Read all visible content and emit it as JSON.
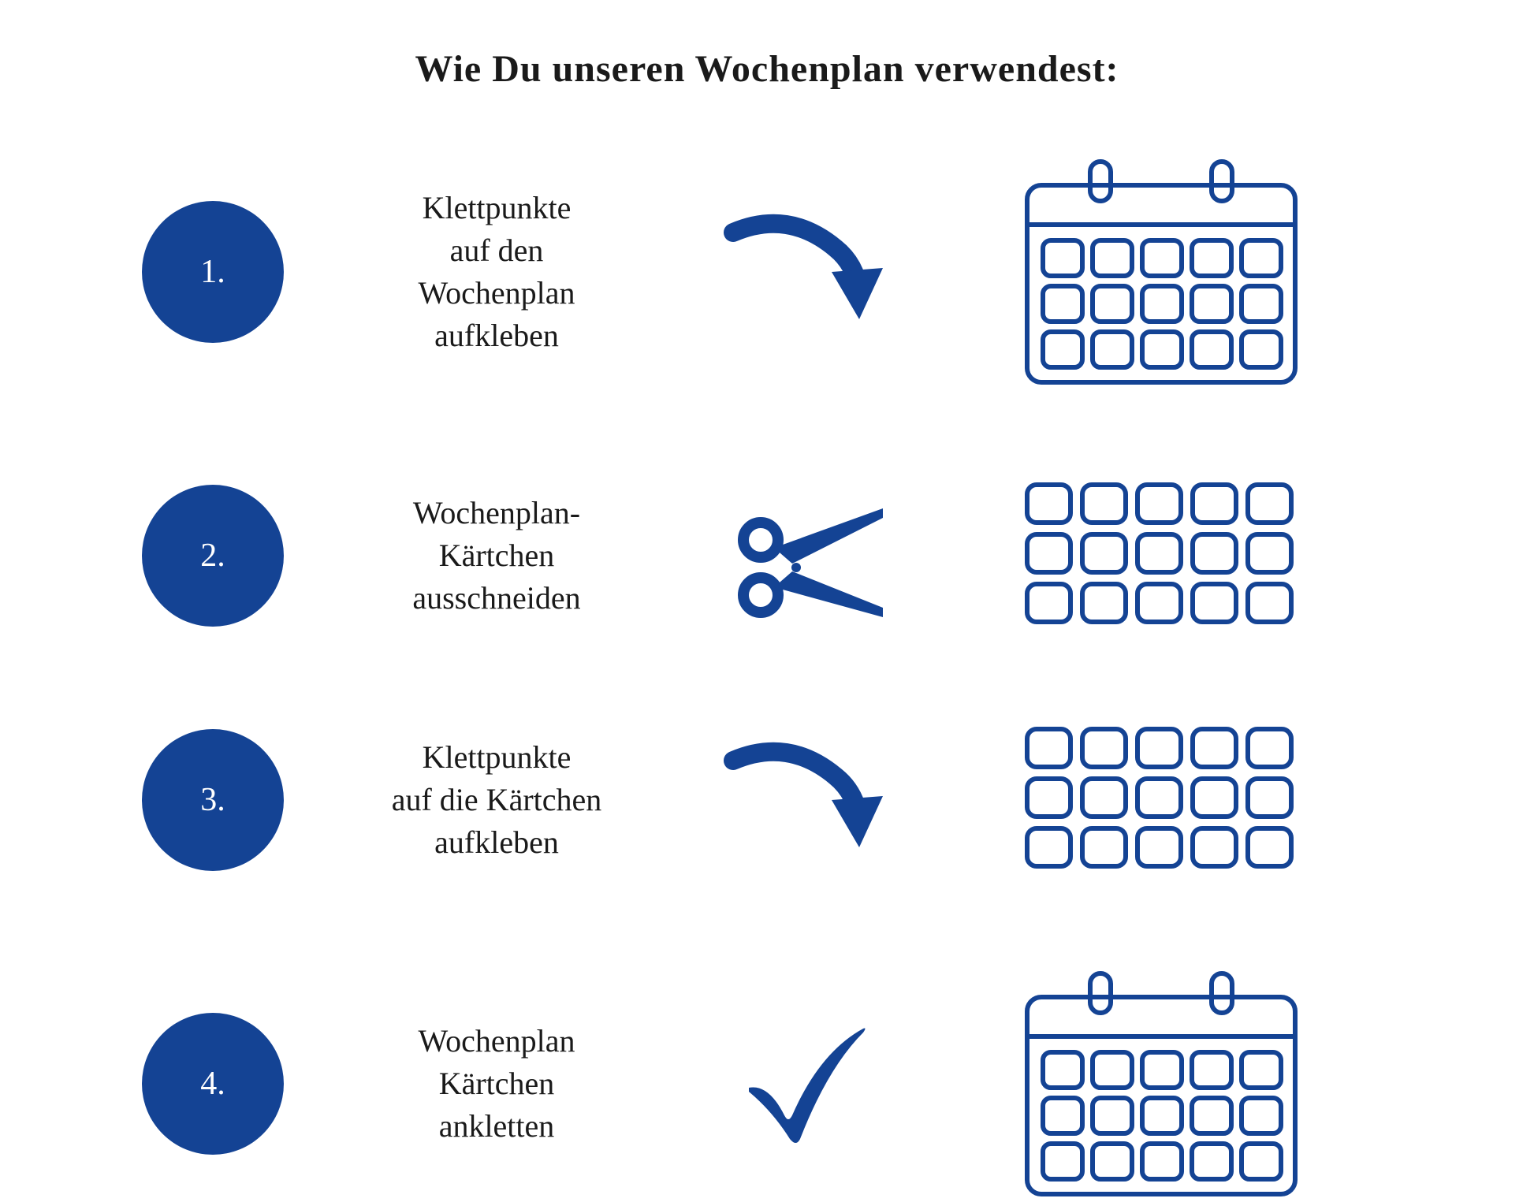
{
  "title": "Wie Du unseren Wochenplan verwendest:",
  "colors": {
    "brand": "#144394",
    "text": "#1a1a1a",
    "background": "#ffffff",
    "circle_text": "#ffffff"
  },
  "typography": {
    "title_font_size": 48,
    "step_font_size": 40,
    "circle_font_size": 42
  },
  "steps": [
    {
      "number": "1.",
      "text": "Klettpunkte\nauf den\nWochenplan\naufkleben",
      "icon": "arrow-down-curve",
      "graphic": "calendar"
    },
    {
      "number": "2.",
      "text": "Wochenplan-\nKärtchen\nausschneiden",
      "icon": "scissors",
      "graphic": "cards-grid"
    },
    {
      "number": "3.",
      "text": "Klettpunkte\nauf die Kärtchen\naufkleben",
      "icon": "arrow-down-curve",
      "graphic": "cards-grid"
    },
    {
      "number": "4.",
      "text": "Wochenplan\nKärtchen\nankletten",
      "icon": "checkmark",
      "graphic": "calendar"
    }
  ],
  "calendar": {
    "stroke_color": "#144394",
    "stroke_width": 6,
    "cols": 5,
    "rows": 3,
    "cell_radius": 10
  },
  "cards_grid": {
    "stroke_color": "#144394",
    "stroke_width": 6,
    "cols": 5,
    "rows": 3,
    "cell_radius": 10
  }
}
